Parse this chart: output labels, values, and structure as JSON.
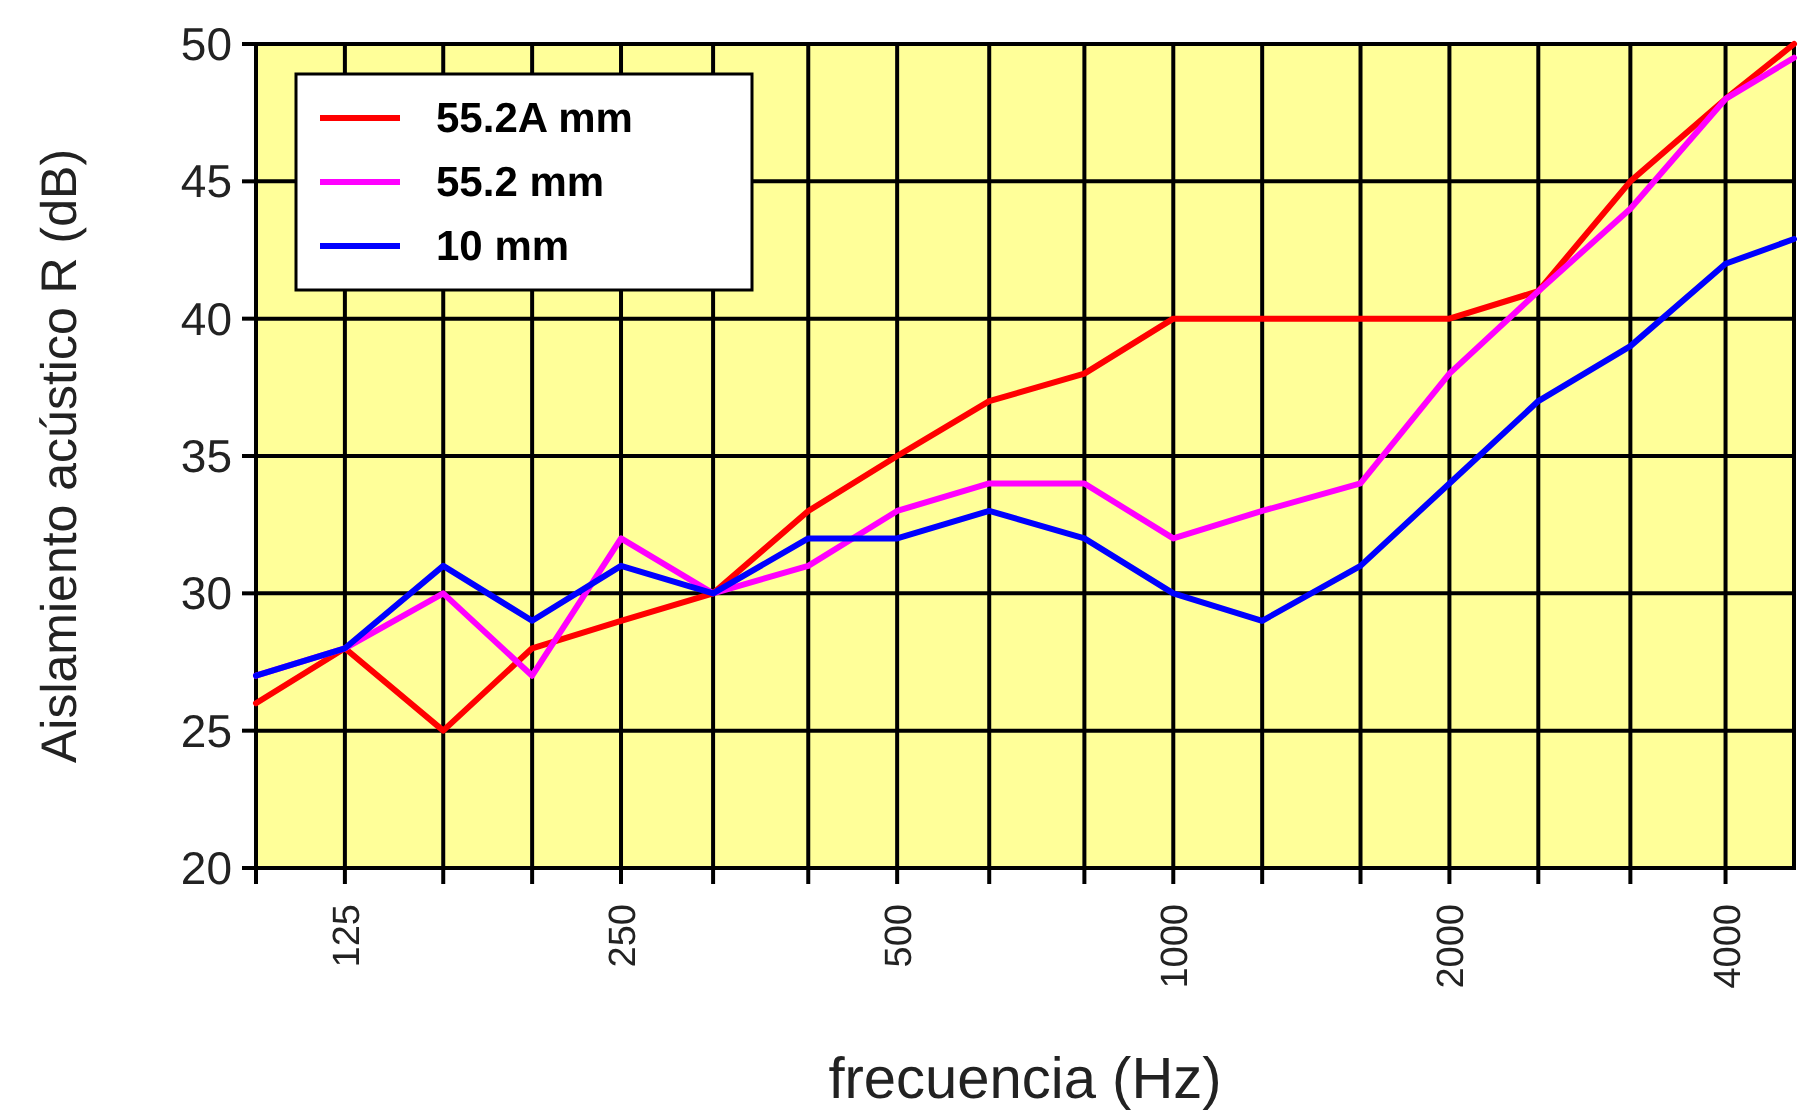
{
  "chart_data": {
    "type": "line",
    "xlabel": "frecuencia (Hz)",
    "ylabel": "Aislamiento acústico R (dB)",
    "log": "x",
    "x": [
      100,
      125,
      160,
      200,
      250,
      315,
      400,
      500,
      630,
      800,
      1000,
      1250,
      1600,
      2000,
      2500,
      3150,
      4000,
      4750
    ],
    "xlim": [
      100,
      4750
    ],
    "xticks": [
      {
        "value": 100,
        "label": null
      },
      125,
      {
        "value": 160,
        "label": null
      },
      {
        "value": 200,
        "label": null
      },
      250,
      {
        "value": 315,
        "label": null
      },
      {
        "value": 400,
        "label": null
      },
      500,
      {
        "value": 630,
        "label": null
      },
      {
        "value": 800,
        "label": null
      },
      1000,
      {
        "value": 1250,
        "label": null
      },
      {
        "value": 1600,
        "label": null
      },
      2000,
      {
        "value": 2500,
        "label": null
      },
      {
        "value": 3150,
        "label": null
      },
      4000
    ],
    "ylim": [
      20,
      50
    ],
    "yticks": [
      20,
      25,
      30,
      35,
      40,
      45,
      50
    ],
    "grid": true,
    "legend": "top left",
    "marker": "none",
    "line_style": "solid",
    "series": [
      {
        "name": "55.2A mm",
        "color": "#ff0000",
        "values": [
          26,
          28,
          25,
          28,
          29,
          30,
          33,
          35,
          37,
          38,
          40,
          40,
          40,
          40,
          41,
          45,
          48,
          50
        ]
      },
      {
        "name": "55.2 mm",
        "color": "#ff00ff",
        "values": [
          27,
          28,
          30,
          27,
          32,
          30,
          31,
          33,
          34,
          34,
          32,
          33,
          34,
          38,
          41,
          44,
          48,
          49.5
        ]
      },
      {
        "name": "10 mm",
        "color": "#0000ff",
        "values": [
          27,
          28,
          31,
          29,
          31,
          30,
          32,
          32,
          33,
          32,
          30,
          29,
          31,
          34,
          37,
          39,
          42,
          42.9
        ]
      }
    ]
  }
}
